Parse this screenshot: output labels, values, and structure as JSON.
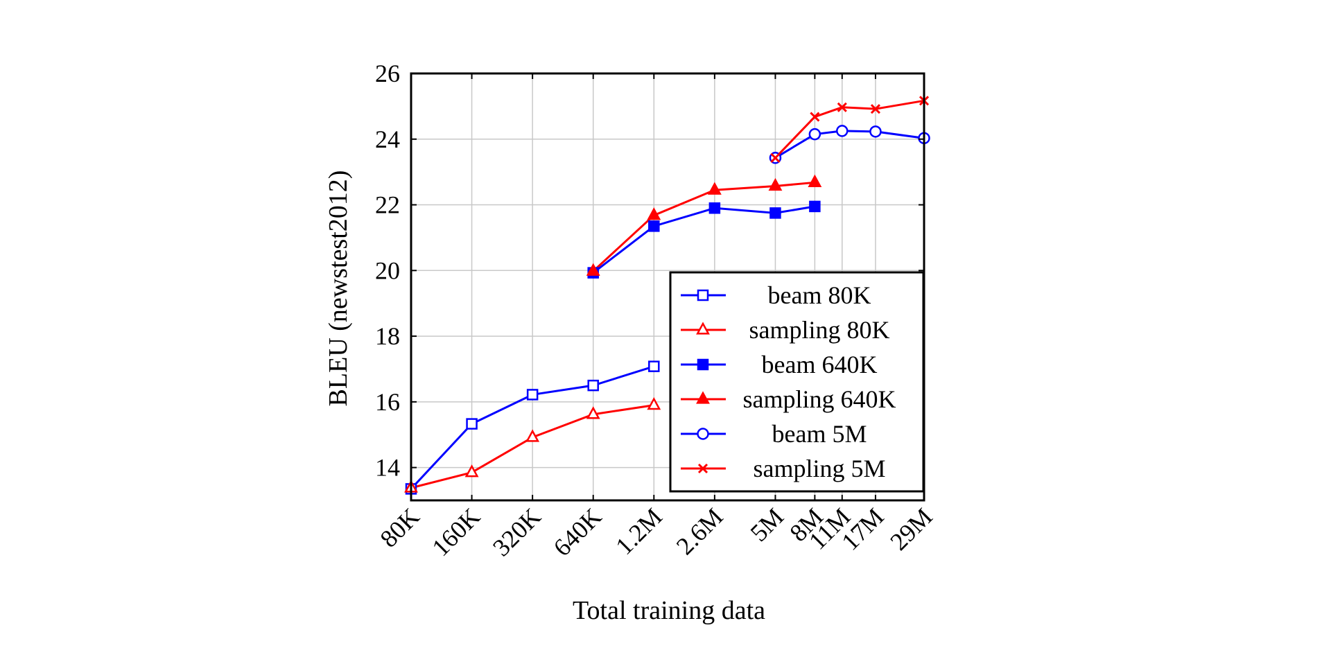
{
  "chart_data": {
    "type": "line",
    "title": "",
    "xlabel": "Total training data",
    "ylabel": "BLEU (newstest2012)",
    "ylim": [
      13,
      26
    ],
    "yticks": [
      14,
      16,
      18,
      20,
      22,
      24,
      26
    ],
    "grid": true,
    "legend_position": "bottom-right",
    "x_positions": [
      0,
      1,
      2,
      3,
      4,
      5,
      6,
      6.65,
      7.1,
      7.65,
      8.45
    ],
    "x_tick_labels": [
      "80K",
      "160K",
      "320K",
      "640K",
      "1.2M",
      "2.6M",
      "5M",
      "8M",
      "11M",
      "17M",
      "29M"
    ],
    "series": [
      {
        "name": "beam 80K",
        "color": "#0000ff",
        "marker": "square-open",
        "points": [
          [
            0,
            13.35
          ],
          [
            1,
            15.33
          ],
          [
            2,
            16.22
          ],
          [
            3,
            16.5
          ],
          [
            4,
            17.08
          ]
        ]
      },
      {
        "name": "sampling 80K",
        "color": "#ff0000",
        "marker": "triangle-open",
        "points": [
          [
            0,
            13.38
          ],
          [
            1,
            13.85
          ],
          [
            2,
            14.92
          ],
          [
            3,
            15.62
          ],
          [
            4,
            15.9
          ]
        ]
      },
      {
        "name": "beam 640K",
        "color": "#0000ff",
        "marker": "square-filled",
        "points": [
          [
            3,
            19.93
          ],
          [
            4,
            21.35
          ],
          [
            5,
            21.9
          ],
          [
            6,
            21.75
          ],
          [
            6.65,
            21.95
          ]
        ]
      },
      {
        "name": "sampling 640K",
        "color": "#ff0000",
        "marker": "triangle-filled",
        "points": [
          [
            3,
            19.98
          ],
          [
            4,
            21.68
          ],
          [
            5,
            22.45
          ],
          [
            6,
            22.57
          ],
          [
            6.65,
            22.68
          ]
        ]
      },
      {
        "name": "beam 5M",
        "color": "#0000ff",
        "marker": "circle-open",
        "points": [
          [
            6,
            23.43
          ],
          [
            6.65,
            24.15
          ],
          [
            7.1,
            24.25
          ],
          [
            7.65,
            24.23
          ],
          [
            8.45,
            24.03
          ]
        ]
      },
      {
        "name": "sampling 5M",
        "color": "#ff0000",
        "marker": "cross",
        "points": [
          [
            6,
            23.43
          ],
          [
            6.65,
            24.68
          ],
          [
            7.1,
            24.97
          ],
          [
            7.65,
            24.92
          ],
          [
            8.45,
            25.17
          ]
        ]
      }
    ]
  }
}
